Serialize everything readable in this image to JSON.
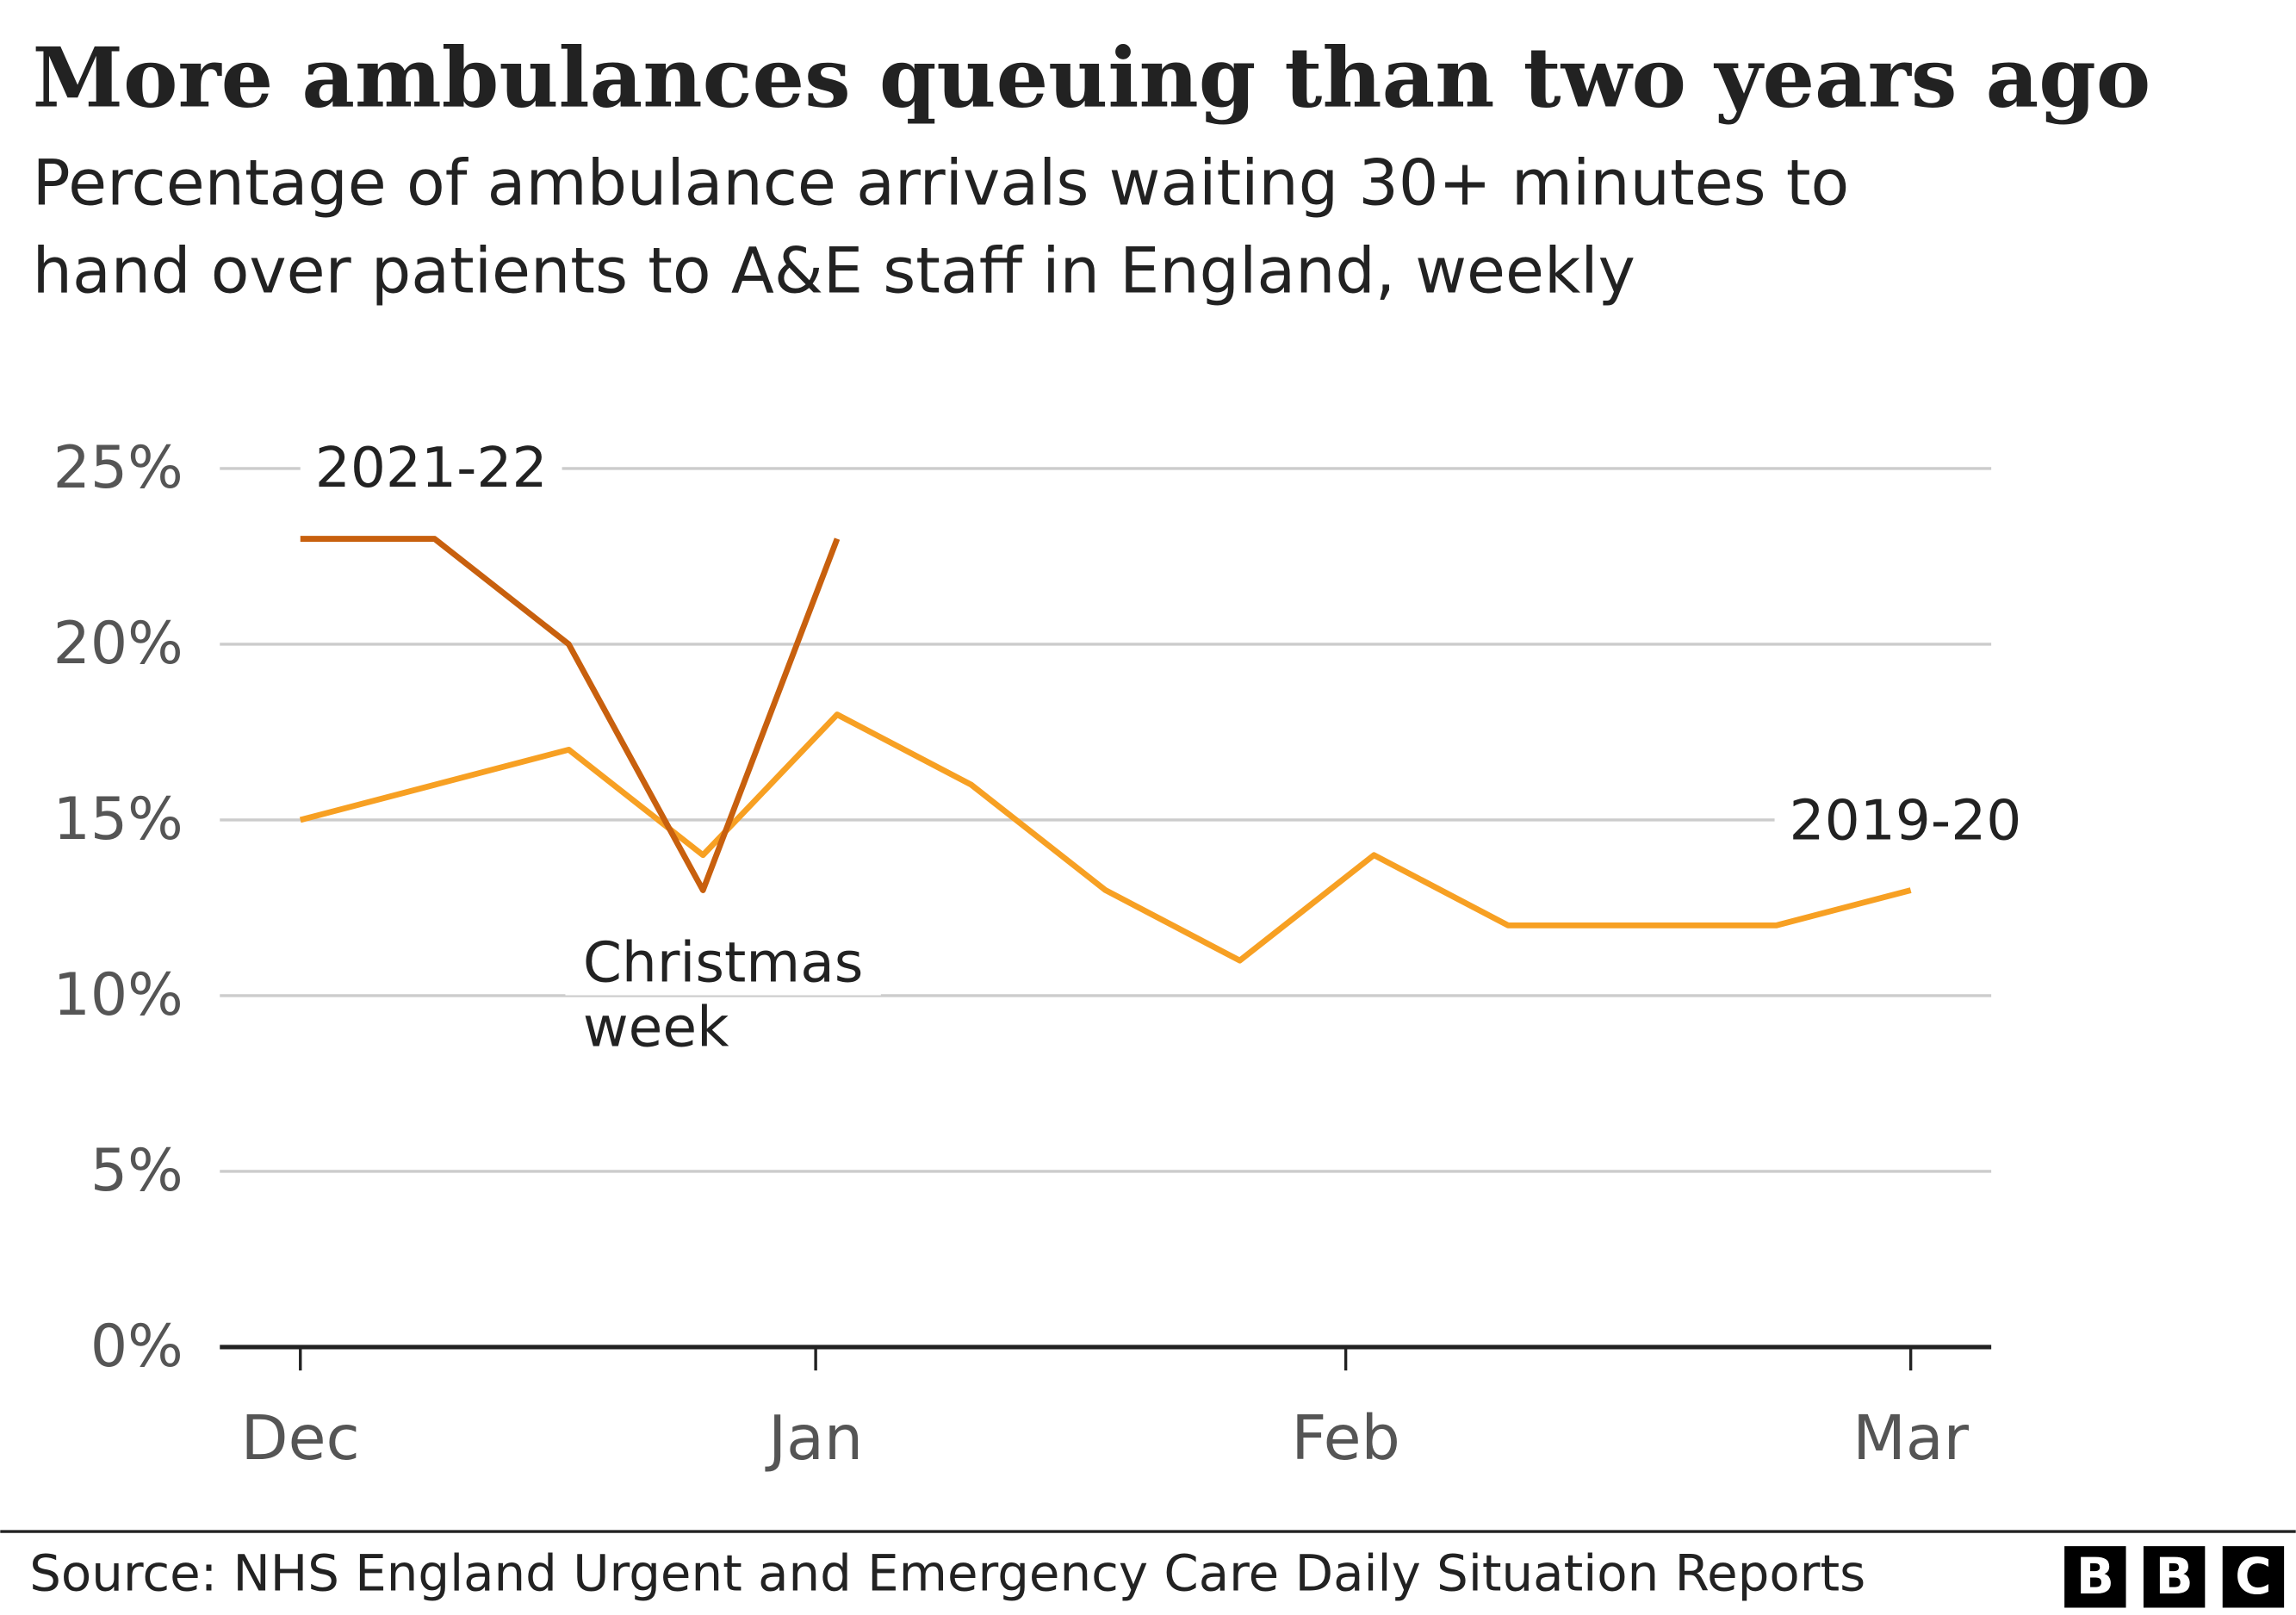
{
  "chart_data": {
    "type": "line",
    "title": "More ambulances queuing than two years ago",
    "subtitle": [
      "Percentage of ambulance arrivals waiting 30+ minutes to",
      "hand over patients to A&E staff in England, weekly"
    ],
    "x": [
      0,
      1,
      2,
      3,
      4,
      5,
      6,
      7,
      8,
      9,
      10,
      11,
      12
    ],
    "series": [
      {
        "name": "2019-20",
        "color": "#f7a023",
        "values": [
          15,
          16,
          17,
          14,
          18,
          16,
          13,
          11,
          14,
          12,
          12,
          12,
          13
        ]
      },
      {
        "name": "2021-22",
        "color": "#c8600e",
        "values": [
          23,
          23,
          20,
          13,
          23,
          null,
          null,
          null,
          null,
          null,
          null,
          null,
          null
        ]
      }
    ],
    "xlim": [
      -0.6,
      12.6
    ],
    "xticks": [
      {
        "value": 0,
        "label": "Dec"
      },
      {
        "value": 3.84,
        "label": "Jan"
      },
      {
        "value": 7.79,
        "label": "Feb"
      },
      {
        "value": 12,
        "label": "Mar"
      }
    ],
    "ylim": [
      0,
      25
    ],
    "yticks": [
      {
        "value": 0,
        "label": "0%"
      },
      {
        "value": 5,
        "label": "5%"
      },
      {
        "value": 10,
        "label": "10%"
      },
      {
        "value": 15,
        "label": "15%"
      },
      {
        "value": 20,
        "label": "20%"
      },
      {
        "value": 25,
        "label": "25%"
      }
    ],
    "grid": true,
    "annotation": [
      "Christmas",
      "week"
    ],
    "source": "Source: NHS England Urgent and Emergency Care Daily Situation Reports",
    "logo": [
      "B",
      "B",
      "C"
    ]
  }
}
